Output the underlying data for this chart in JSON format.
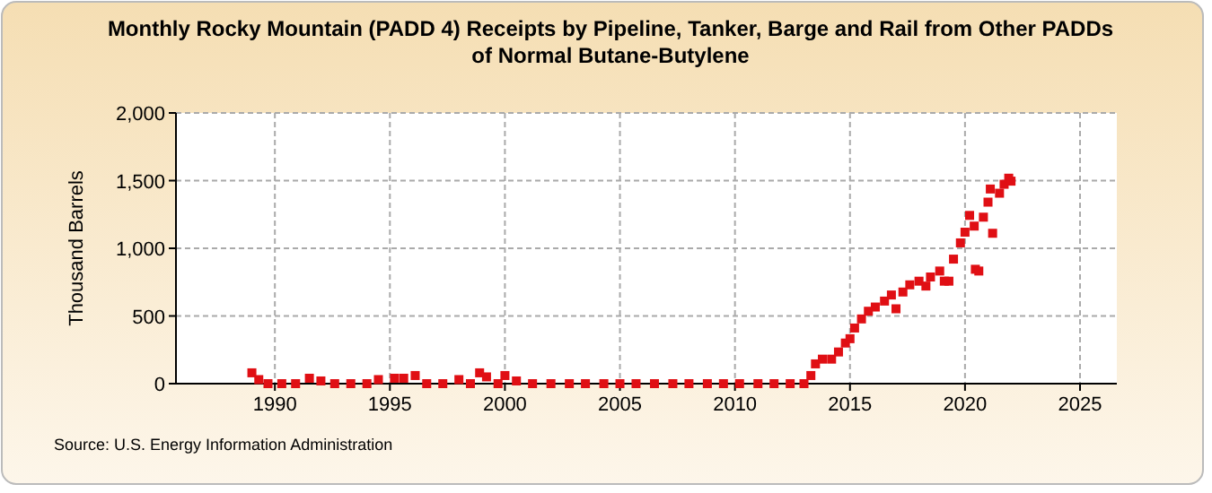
{
  "chart_data": {
    "type": "scatter",
    "title": "Monthly Rocky Mountain (PADD 4) Receipts by Pipeline, Tanker, Barge and Rail from Other PADDs of Normal Butane-Butylene",
    "ylabel": "Thousand Barrels",
    "annotations": [
      "Source: U.S. Energy Information Administration"
    ],
    "x": [
      1989.0,
      1989.3,
      1989.7,
      1990.3,
      1990.9,
      1991.5,
      1992.0,
      1992.6,
      1993.3,
      1994.0,
      1994.5,
      1995.2,
      1995.6,
      1996.1,
      1996.6,
      1997.3,
      1998.0,
      1998.5,
      1998.9,
      1999.2,
      1999.7,
      2000.0,
      2000.5,
      2001.2,
      2002.0,
      2002.8,
      2003.5,
      2004.3,
      2005.0,
      2005.7,
      2006.5,
      2007.3,
      2008.0,
      2008.8,
      2009.5,
      2010.2,
      2011.0,
      2011.7,
      2012.4,
      2013.0,
      2013.3,
      2013.5,
      2013.8,
      2014.2,
      2014.5,
      2014.8,
      2015.0,
      2015.2,
      2015.5,
      2015.8,
      2016.1,
      2016.5,
      2016.8,
      2017.0,
      2017.3,
      2017.6,
      2018.0,
      2018.3,
      2018.5,
      2018.9,
      2019.1,
      2019.3,
      2019.5,
      2019.8,
      2020.0,
      2020.2,
      2020.4,
      2020.45,
      2020.6,
      2020.8,
      2021.0,
      2021.1,
      2021.2,
      2021.5,
      2021.7,
      2021.9,
      2022.0
    ],
    "series": [
      {
        "color": "#e00f14",
        "values": [
          80,
          30,
          0,
          0,
          0,
          40,
          20,
          0,
          0,
          0,
          30,
          40,
          40,
          60,
          0,
          0,
          30,
          0,
          80,
          50,
          0,
          60,
          20,
          0,
          0,
          0,
          0,
          0,
          0,
          0,
          0,
          0,
          0,
          0,
          0,
          0,
          0,
          0,
          0,
          0,
          60,
          146,
          181,
          181,
          234,
          300,
          332,
          411,
          478,
          535,
          566,
          610,
          655,
          553,
          677,
          730,
          757,
          721,
          788,
          832,
          757,
          757,
          920,
          1040,
          1119,
          1243,
          1164,
          845,
          832,
          1230,
          1341,
          1438,
          1111,
          1407,
          1473,
          1518,
          1496
        ]
      }
    ],
    "xlim": [
      1985.7,
      2026.6
    ],
    "xticks": [
      1990,
      1995,
      2000,
      2005,
      2010,
      2015,
      2020,
      2025
    ],
    "ylim": [
      0,
      2000
    ],
    "yticks": [
      0,
      {
        "value": 500,
        "label": "500"
      },
      {
        "value": 1000,
        "label": "1,000"
      },
      {
        "value": 1500,
        "label": "1,500"
      },
      {
        "value": 2000,
        "label": "2,000"
      }
    ],
    "grid": true,
    "marker": "square"
  }
}
